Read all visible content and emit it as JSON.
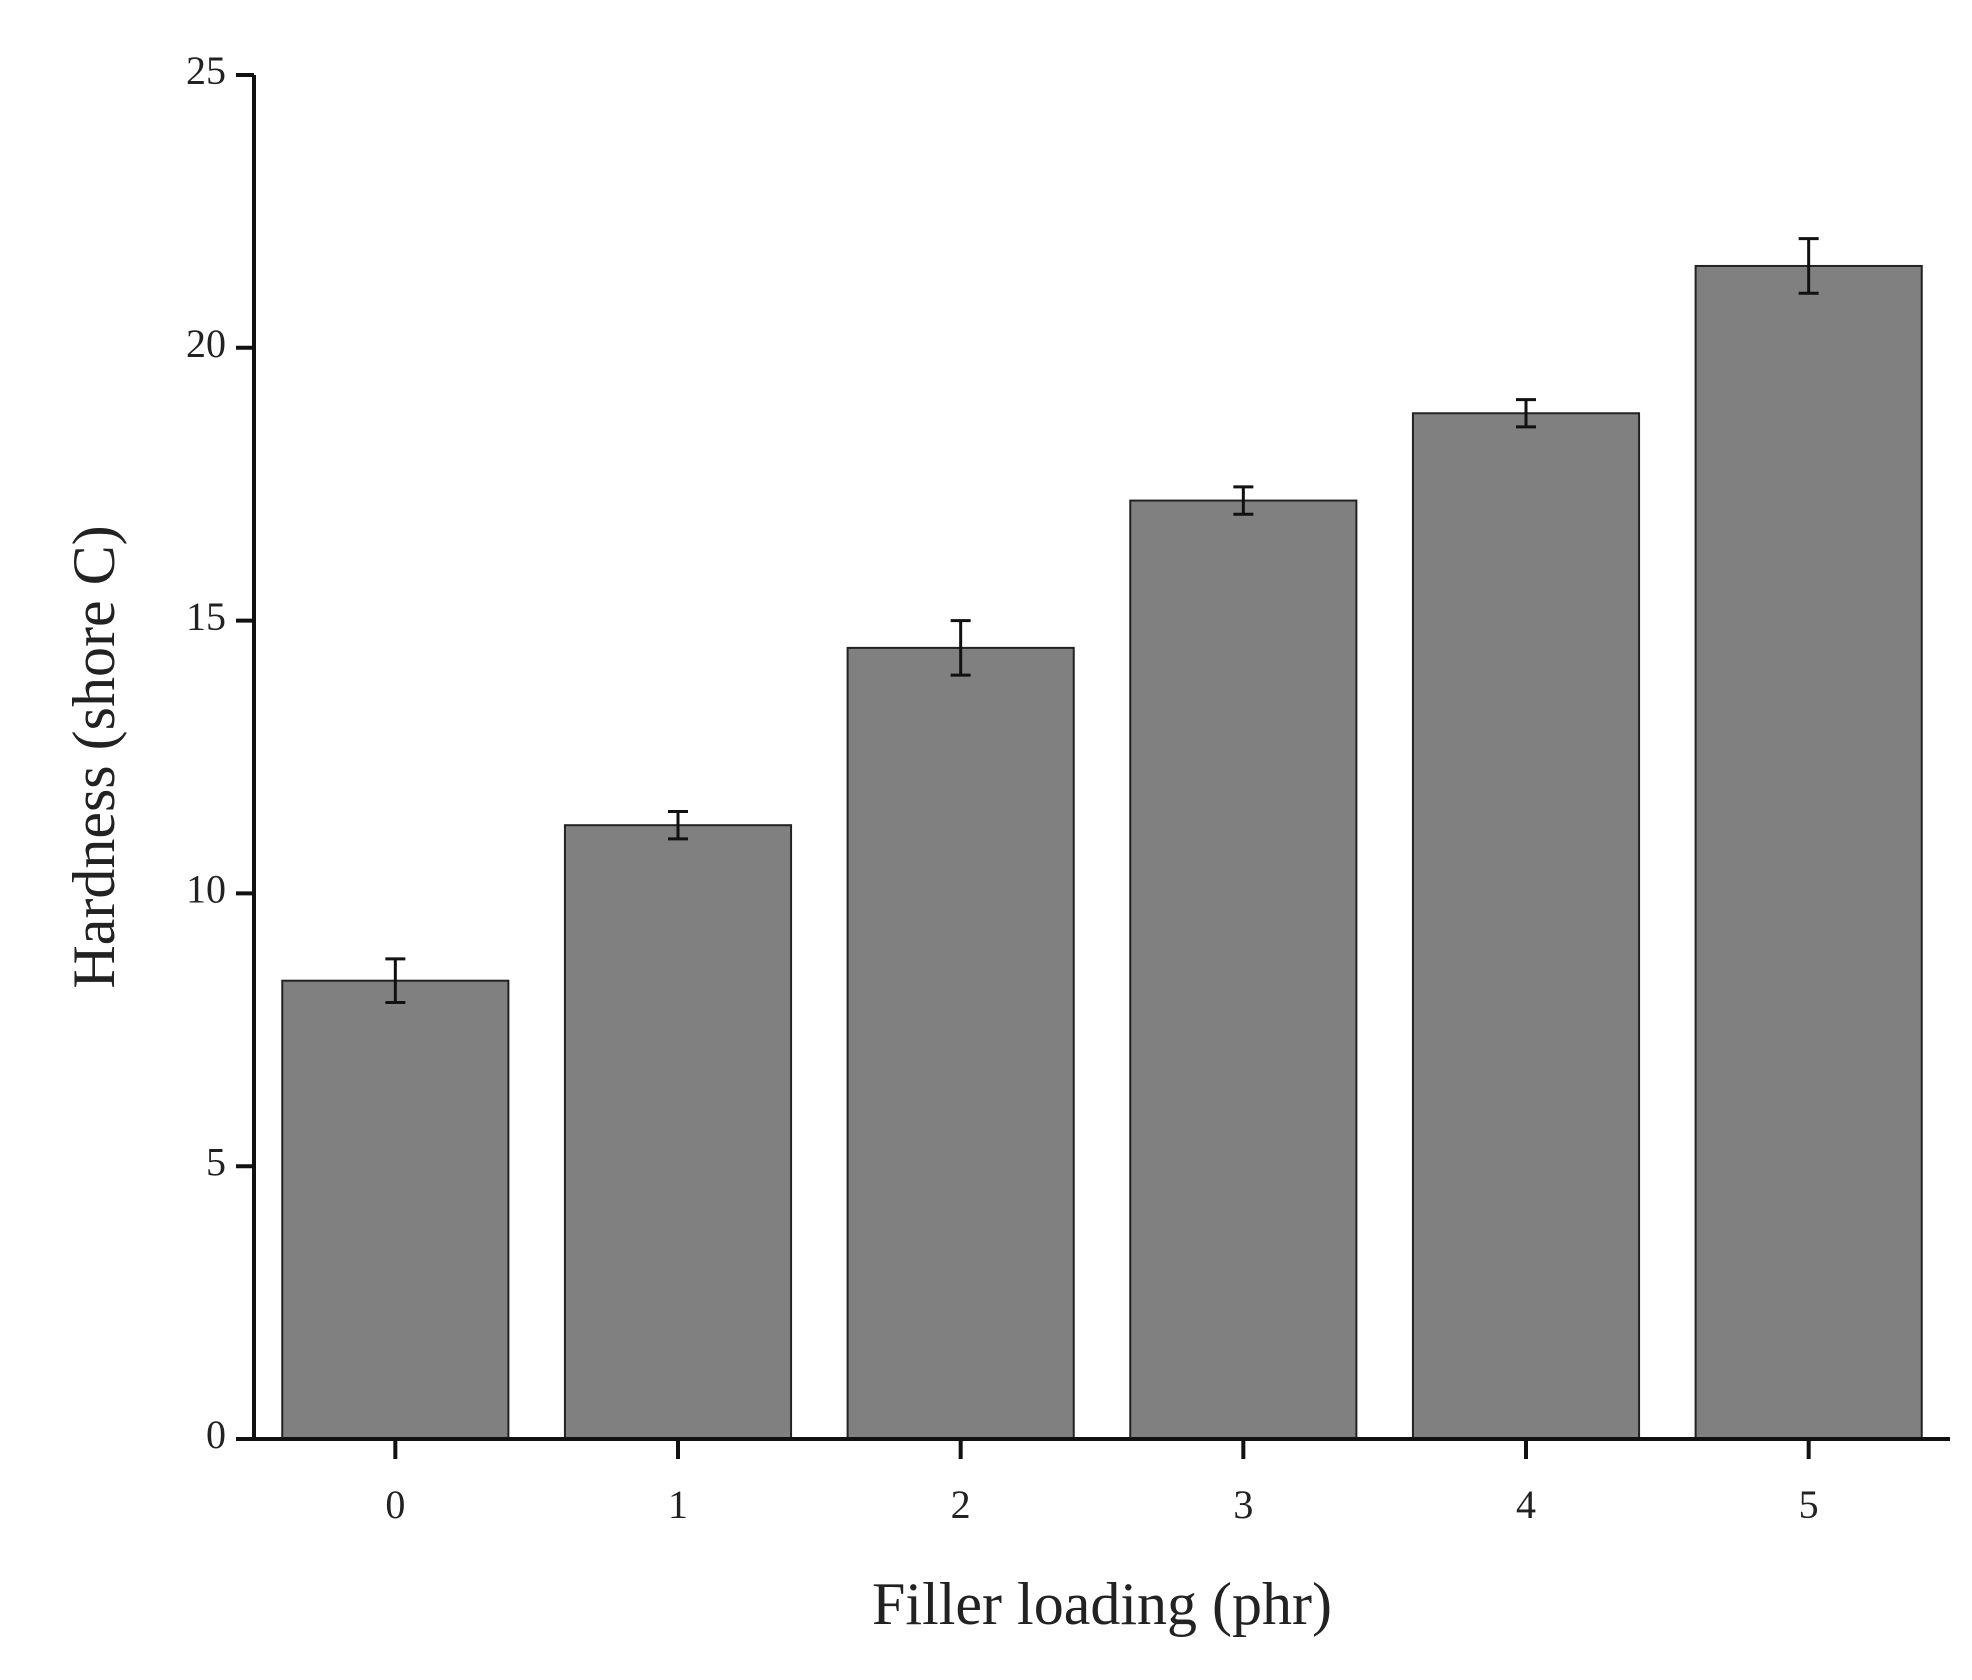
{
  "chart_data": {
    "type": "bar",
    "x_label": "Filler loading (phr)",
    "y_label": "Hardness (shore C)",
    "categories": [
      "0",
      "1",
      "2",
      "3",
      "4",
      "5"
    ],
    "values": [
      8.4,
      11.25,
      14.5,
      17.2,
      18.8,
      21.5
    ],
    "errors": [
      0.4,
      0.25,
      0.5,
      0.25,
      0.25,
      0.5
    ],
    "color": "#808080",
    "ylim": [
      0,
      25
    ],
    "yticks": [
      0,
      5,
      10,
      15,
      20,
      25
    ],
    "grid": false
  }
}
